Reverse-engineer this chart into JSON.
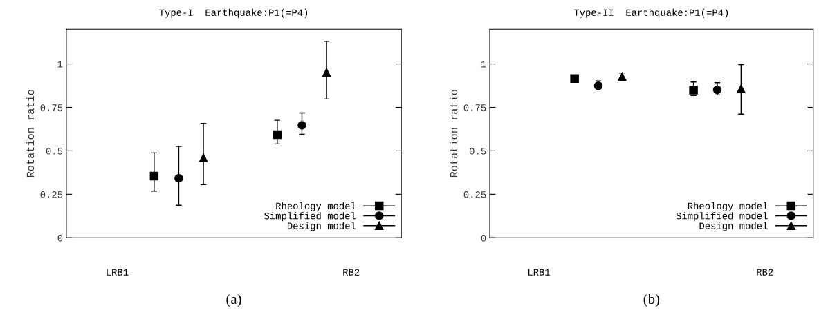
{
  "chart_data": [
    {
      "type": "scatter",
      "title": "Type-I  Earthquake:P1(=P4)",
      "ylabel": "Rotation ratio",
      "categories": [
        "LRB1",
        null,
        null,
        null,
        null,
        null,
        null,
        null,
        null,
        null,
        null,
        null,
        null,
        null,
        null,
        null,
        null,
        null,
        null,
        "RB2"
      ],
      "ylim": [
        0,
        1.2
      ],
      "yticks": [
        0,
        0.25,
        0.5,
        0.75,
        1
      ],
      "grid": false,
      "legend": "bottom right",
      "annotations": [
        "(a)"
      ],
      "series": [
        {
          "name": "Rheology model",
          "color": "#000000",
          "marker": "square",
          "values": [
            null,
            null,
            null,
            0.355,
            null,
            null,
            null,
            null,
            null,
            null,
            null,
            null,
            null,
            0.593,
            null,
            null,
            null,
            null,
            null,
            null
          ],
          "errors": [
            null,
            null,
            null,
            [
              0.268,
              0.488
            ],
            null,
            null,
            null,
            null,
            null,
            null,
            null,
            null,
            null,
            [
              0.54,
              0.676
            ],
            null,
            null,
            null,
            null,
            null,
            null
          ]
        },
        {
          "name": "Simplified model",
          "color": "#000000",
          "marker": "circle",
          "values": [
            null,
            null,
            null,
            null,
            null,
            0.342,
            null,
            null,
            null,
            null,
            null,
            null,
            null,
            null,
            null,
            0.647,
            null,
            null,
            null,
            null
          ],
          "errors": [
            null,
            null,
            null,
            null,
            null,
            [
              0.187,
              0.525
            ],
            null,
            null,
            null,
            null,
            null,
            null,
            null,
            null,
            null,
            [
              0.595,
              0.718
            ],
            null,
            null,
            null,
            null
          ]
        },
        {
          "name": "Design model",
          "color": "#000000",
          "marker": "triangle",
          "values": [
            null,
            null,
            null,
            null,
            null,
            null,
            null,
            0.46,
            null,
            null,
            null,
            null,
            null,
            null,
            null,
            null,
            null,
            0.951,
            null,
            null
          ],
          "errors": [
            null,
            null,
            null,
            null,
            null,
            null,
            null,
            [
              0.306,
              0.658
            ],
            null,
            null,
            null,
            null,
            null,
            null,
            null,
            null,
            null,
            [
              0.798,
              1.13
            ],
            null,
            null
          ]
        }
      ]
    },
    {
      "type": "scatter",
      "title": "Type-II  Earthquake:P1(=P4)",
      "ylabel": "Rotation ratio",
      "categories": [
        "LRB1",
        null,
        null,
        null,
        null,
        null,
        null,
        null,
        null,
        null,
        null,
        null,
        null,
        null,
        null,
        null,
        null,
        null,
        null,
        "RB2"
      ],
      "ylim": [
        0,
        1.2
      ],
      "yticks": [
        0,
        0.25,
        0.5,
        0.75,
        1
      ],
      "grid": false,
      "legend": "bottom right",
      "annotations": [
        "(b)"
      ],
      "series": [
        {
          "name": "Rheology model",
          "color": "#000000",
          "marker": "square",
          "values": [
            null,
            null,
            null,
            0.916,
            null,
            null,
            null,
            null,
            null,
            null,
            null,
            null,
            null,
            0.849,
            null,
            null,
            null,
            null,
            null,
            null
          ],
          "errors": [
            null,
            null,
            null,
            null,
            null,
            null,
            null,
            null,
            null,
            null,
            null,
            null,
            null,
            [
              0.818,
              0.896
            ],
            null,
            null,
            null,
            null,
            null,
            null
          ]
        },
        {
          "name": "Simplified model",
          "color": "#000000",
          "marker": "circle",
          "values": [
            null,
            null,
            null,
            null,
            null,
            0.874,
            null,
            null,
            null,
            null,
            null,
            null,
            null,
            null,
            null,
            0.851,
            null,
            null,
            null,
            null
          ],
          "errors": [
            null,
            null,
            null,
            null,
            null,
            [
              0.86,
              0.902
            ],
            null,
            null,
            null,
            null,
            null,
            null,
            null,
            null,
            null,
            [
              0.822,
              0.892
            ],
            null,
            null,
            null,
            null
          ]
        },
        {
          "name": "Design model",
          "color": "#000000",
          "marker": "triangle",
          "values": [
            null,
            null,
            null,
            null,
            null,
            null,
            null,
            0.927,
            null,
            null,
            null,
            null,
            null,
            null,
            null,
            null,
            null,
            0.857,
            null,
            null
          ],
          "errors": [
            null,
            null,
            null,
            null,
            null,
            null,
            null,
            [
              0.906,
              0.948
            ],
            null,
            null,
            null,
            null,
            null,
            null,
            null,
            null,
            null,
            [
              0.711,
              0.996
            ],
            null,
            null
          ]
        }
      ]
    }
  ]
}
